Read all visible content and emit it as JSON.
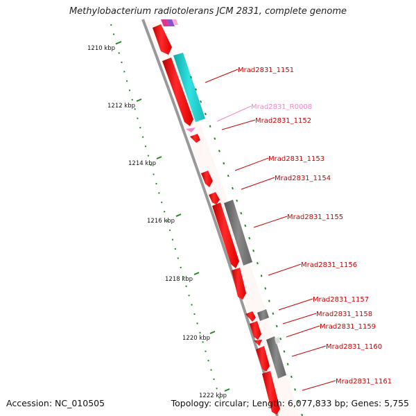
{
  "title": "Methylobacterium radiotolerans JCM 2831, complete genome",
  "footer": {
    "accession": "Accession: NC_010505",
    "topology": "Topology: circular; Length: 6,077,833 bp; Genes: 5,755"
  },
  "axis": {
    "ticks": [
      "1210 kbp",
      "1212 kbp",
      "1214 kbp",
      "1216 kbp",
      "1218 kbp",
      "1220 kbp",
      "1222 kbp"
    ]
  },
  "genes": [
    {
      "label": "Mrad2831_1151",
      "color": "#cc0000"
    },
    {
      "label": "Mrad2831_R0008",
      "color": "#ee88cc"
    },
    {
      "label": "Mrad2831_1152",
      "color": "#cc0000"
    },
    {
      "label": "Mrad2831_1153",
      "color": "#cc0000"
    },
    {
      "label": "Mrad2831_1154",
      "color": "#cc0000"
    },
    {
      "label": "Mrad2831_1155",
      "color": "#cc0000"
    },
    {
      "label": "Mrad2831_1156",
      "color": "#cc0000"
    },
    {
      "label": "Mrad2831_1157",
      "color": "#cc0000"
    },
    {
      "label": "Mrad2831_1158",
      "color": "#cc0000"
    },
    {
      "label": "Mrad2831_1159",
      "color": "#cc0000"
    },
    {
      "label": "Mrad2831_1160",
      "color": "#cc0000"
    },
    {
      "label": "Mrad2831_1161",
      "color": "#cc0000"
    }
  ],
  "colors": {
    "cds": "#ee1111",
    "rrna": "#ee88cc",
    "cyan_feature": "#22cccc",
    "grey_feature": "#777777",
    "backbone": "#999999",
    "ruler": "#228822"
  }
}
